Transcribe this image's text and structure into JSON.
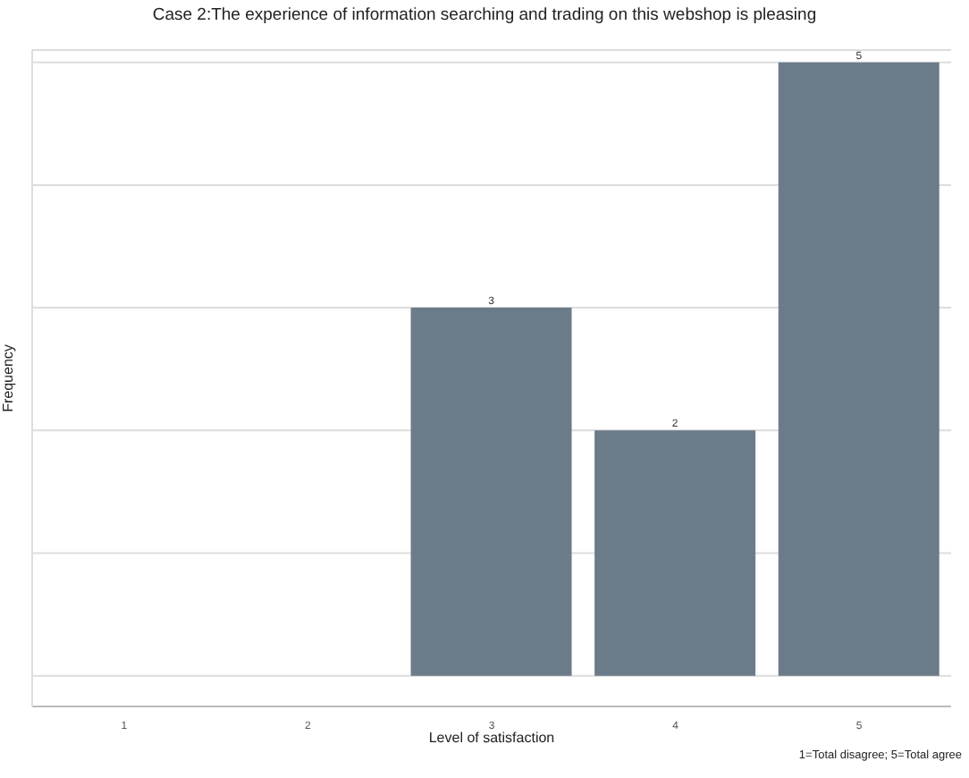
{
  "chart_data": {
    "type": "bar",
    "title": "Case 2:The experience of information searching and trading on this webshop is pleasing",
    "xlabel": "Level of satisfaction",
    "ylabel": "Frequency",
    "annotations": [
      "1=Total disagree; 5=Total agree"
    ],
    "categories": [
      "1",
      "2",
      "3",
      "4",
      "5"
    ],
    "values": [
      null,
      null,
      3,
      2,
      5
    ],
    "value_labels": [
      null,
      null,
      "3",
      "2",
      "5"
    ],
    "color": "#6b7b8a",
    "ylim": [
      -0.25,
      5.1
    ],
    "yticks": [
      {
        "value": 0,
        "label": null
      },
      {
        "value": 1,
        "label": null
      },
      {
        "value": 2,
        "label": null
      },
      {
        "value": 3,
        "label": null
      },
      {
        "value": 4,
        "label": null
      },
      {
        "value": 5,
        "label": null
      }
    ],
    "tick_labels": "x",
    "grid": "y"
  }
}
